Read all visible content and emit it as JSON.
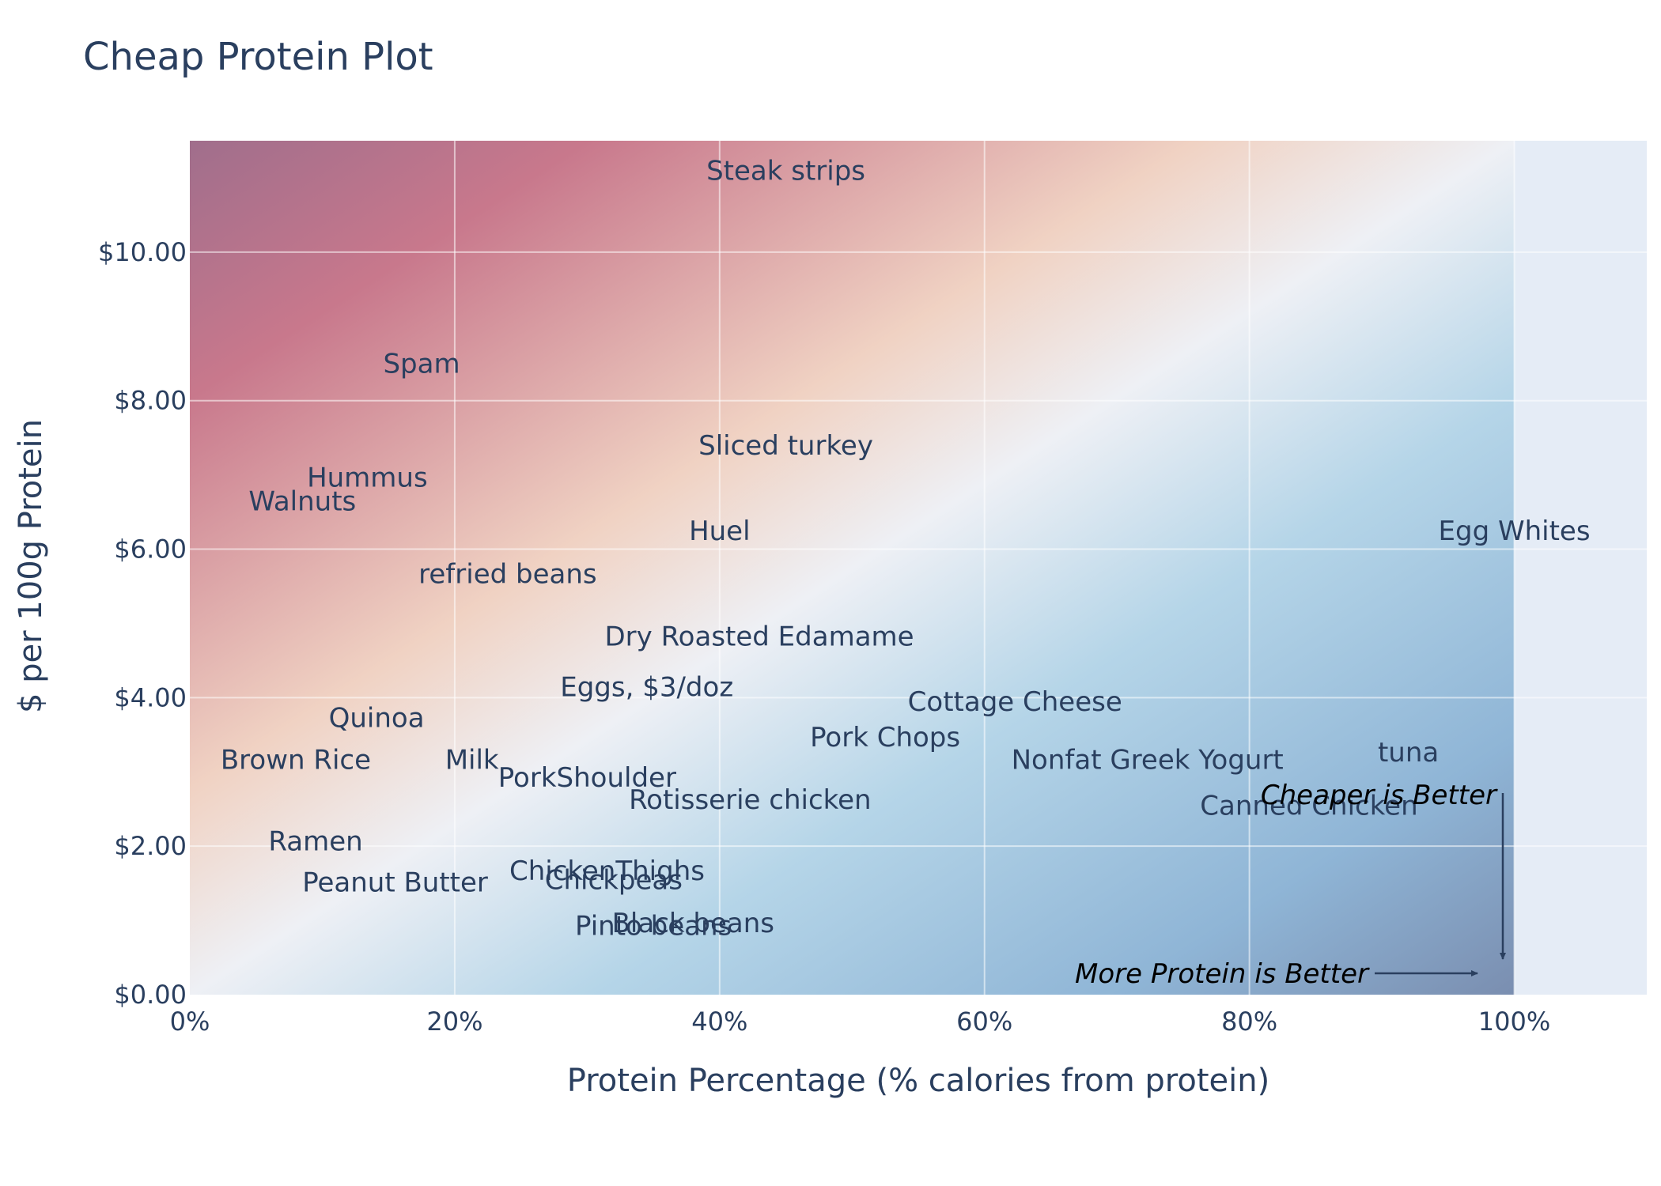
{
  "colors": {
    "plot_background": "#e5ecf6",
    "text": "#2a3f5f",
    "grid": "#ffffff",
    "gradient_top_left": "#a06e8c",
    "gradient_pink": "#c8788c",
    "gradient_peach": "#f0d2c3",
    "gradient_neutral": "#eef0f5",
    "gradient_light_blue": "#b5d5e8",
    "gradient_blue": "#8fb5d6",
    "gradient_bottom_right": "#7a8eb0",
    "arrow": "#2a3f5f"
  },
  "chart_data": {
    "type": "scatter",
    "title": "Cheap Protein Plot",
    "xlabel": "Protein Percentage (% calories from protein)",
    "ylabel": "$ per 100g Protein",
    "xlim": [
      0,
      1.1
    ],
    "ylim": [
      0,
      11.5
    ],
    "grid": true,
    "legend": "none",
    "x_ticks": [
      {
        "value": 0,
        "label": "0%"
      },
      {
        "value": 0.2,
        "label": "20%"
      },
      {
        "value": 0.4,
        "label": "40%"
      },
      {
        "value": 0.6,
        "label": "60%"
      },
      {
        "value": 0.8,
        "label": "80%"
      },
      {
        "value": 1.0,
        "label": "100%"
      }
    ],
    "y_ticks": [
      {
        "value": 0,
        "label": "$0.00"
      },
      {
        "value": 2,
        "label": "$2.00"
      },
      {
        "value": 4,
        "label": "$4.00"
      },
      {
        "value": 6,
        "label": "$6.00"
      },
      {
        "value": 8,
        "label": "$8.00"
      },
      {
        "value": 10,
        "label": "$10.00"
      }
    ],
    "points": [
      {
        "label": "Steak strips",
        "x": 0.45,
        "y": 11.1
      },
      {
        "label": "Spam",
        "x": 0.175,
        "y": 8.5
      },
      {
        "label": "Sliced turkey",
        "x": 0.45,
        "y": 7.4
      },
      {
        "label": "Hummus",
        "x": 0.134,
        "y": 6.97
      },
      {
        "label": "Walnuts",
        "x": 0.085,
        "y": 6.65
      },
      {
        "label": "Huel",
        "x": 0.4,
        "y": 6.25
      },
      {
        "label": "Egg Whites",
        "x": 1.0,
        "y": 6.25
      },
      {
        "label": "refried beans",
        "x": 0.24,
        "y": 5.67
      },
      {
        "label": "Dry Roasted Edamame",
        "x": 0.43,
        "y": 4.83
      },
      {
        "label": "Eggs, $3/doz",
        "x": 0.345,
        "y": 4.15
      },
      {
        "label": "Cottage Cheese",
        "x": 0.623,
        "y": 3.95
      },
      {
        "label": "Quinoa",
        "x": 0.141,
        "y": 3.73
      },
      {
        "label": "Pork Chops",
        "x": 0.525,
        "y": 3.47
      },
      {
        "label": "tuna",
        "x": 0.92,
        "y": 3.27
      },
      {
        "label": "Brown Rice",
        "x": 0.08,
        "y": 3.17
      },
      {
        "label": "Milk",
        "x": 0.213,
        "y": 3.17
      },
      {
        "label": "Nonfat Greek Yogurt",
        "x": 0.723,
        "y": 3.17
      },
      {
        "label": "PorkShoulder",
        "x": 0.3,
        "y": 2.93
      },
      {
        "label": "Rotisserie chicken",
        "x": 0.423,
        "y": 2.63
      },
      {
        "label": "Canned Chicken",
        "x": 0.845,
        "y": 2.55
      },
      {
        "label": "Ramen",
        "x": 0.095,
        "y": 2.07
      },
      {
        "label": "ChickenThighs",
        "x": 0.315,
        "y": 1.67
      },
      {
        "label": "Chickpeas",
        "x": 0.32,
        "y": 1.55
      },
      {
        "label": "Peanut Butter",
        "x": 0.155,
        "y": 1.52
      },
      {
        "label": "Black beans",
        "x": 0.38,
        "y": 0.97
      },
      {
        "label": "Pinto beans",
        "x": 0.35,
        "y": 0.93
      }
    ],
    "annotations": [
      {
        "text": "Cheaper is Better",
        "arrow": "down"
      },
      {
        "text": "More Protein is Better",
        "arrow": "right"
      }
    ]
  }
}
